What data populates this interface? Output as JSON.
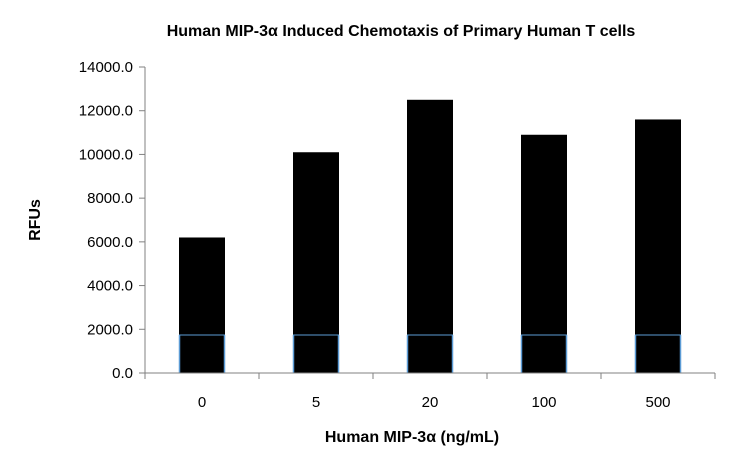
{
  "chart_data": {
    "type": "bar",
    "title": "Human MIP-3α Induced Chemotaxis of Primary Human T cells",
    "xlabel": "Human MIP-3α (ng/mL)",
    "ylabel": "RFUs",
    "categories": [
      "0",
      "5",
      "20",
      "100",
      "500"
    ],
    "values": [
      6200,
      10100,
      12500,
      10900,
      11600
    ],
    "ylim": [
      0,
      14000
    ],
    "yticks": [
      0,
      2000,
      4000,
      6000,
      8000,
      10000,
      12000,
      14000
    ],
    "ytick_labels": [
      "0.0",
      "2000.0",
      "4000.0",
      "6000.0",
      "8000.0",
      "10000.0",
      "12000.0",
      "14000.0"
    ],
    "grid": false,
    "legend": "none",
    "colors": {
      "bar": "#000000",
      "bar_edge_accent": "#5b9bd5",
      "axis": "#808080"
    }
  }
}
